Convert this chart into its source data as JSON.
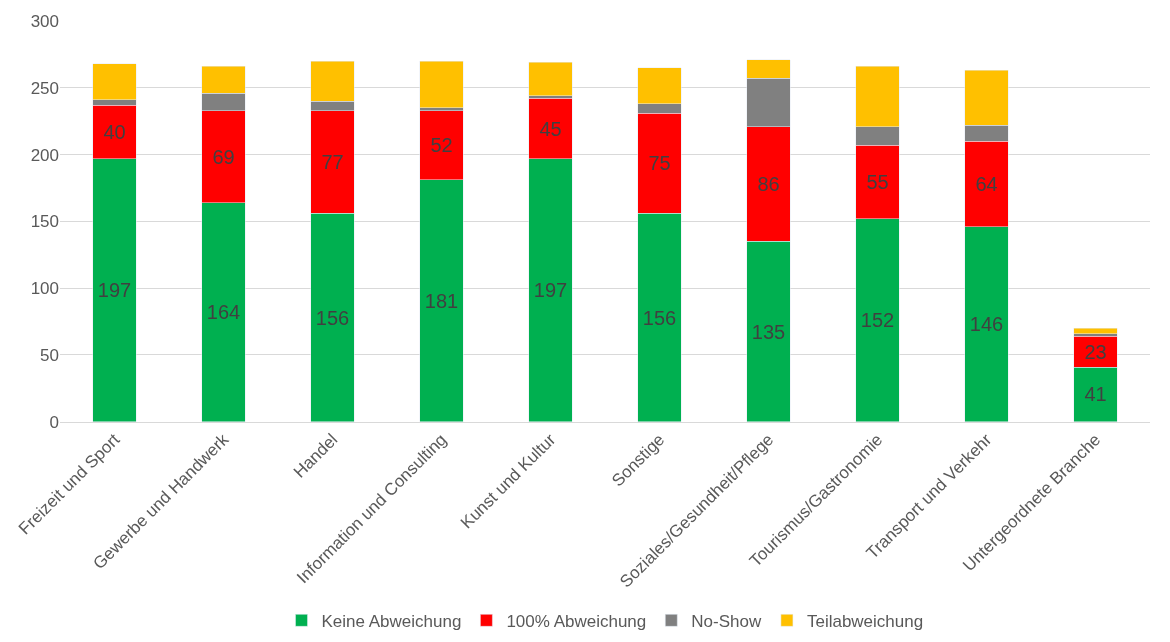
{
  "chart_data": {
    "type": "bar",
    "stacked": true,
    "categories": [
      "Freizeit und Sport",
      "Gewerbe und Handwerk",
      "Handel",
      "Information und Consulting",
      "Kunst und Kultur",
      "Sonstige",
      "Soziales/Gesundheit/Pflege",
      "Tourismus/Gastronomie",
      "Transport und Verkehr",
      "Untergeordnete Branche"
    ],
    "series": [
      {
        "name": "Keine Abweichung",
        "color": "#00b050",
        "values": [
          197,
          164,
          156,
          181,
          197,
          156,
          135,
          152,
          146,
          41
        ],
        "value_labels": [
          "197",
          "164",
          "156",
          "181",
          "197",
          "156",
          "135",
          "152",
          "146",
          "41"
        ]
      },
      {
        "name": "100% Abweichung",
        "color": "#ff0000",
        "values": [
          40,
          69,
          77,
          52,
          45,
          75,
          86,
          55,
          64,
          23
        ],
        "value_labels": [
          "40",
          "69",
          "77",
          "52",
          "45",
          "75",
          "86",
          "55",
          "64",
          "23"
        ]
      },
      {
        "name": "No-Show",
        "color": "#808080",
        "values": [
          4,
          13,
          7,
          2,
          2,
          7,
          36,
          14,
          12,
          2
        ]
      },
      {
        "name": "Teilabweichung",
        "color": "#ffc000",
        "values": [
          27,
          20,
          30,
          35,
          25,
          27,
          14,
          45,
          41,
          4
        ]
      }
    ],
    "ylim": [
      0,
      300
    ],
    "yticks": [
      0,
      50,
      100,
      150,
      200,
      250,
      300
    ],
    "grid": "y",
    "legend": "bottom"
  }
}
